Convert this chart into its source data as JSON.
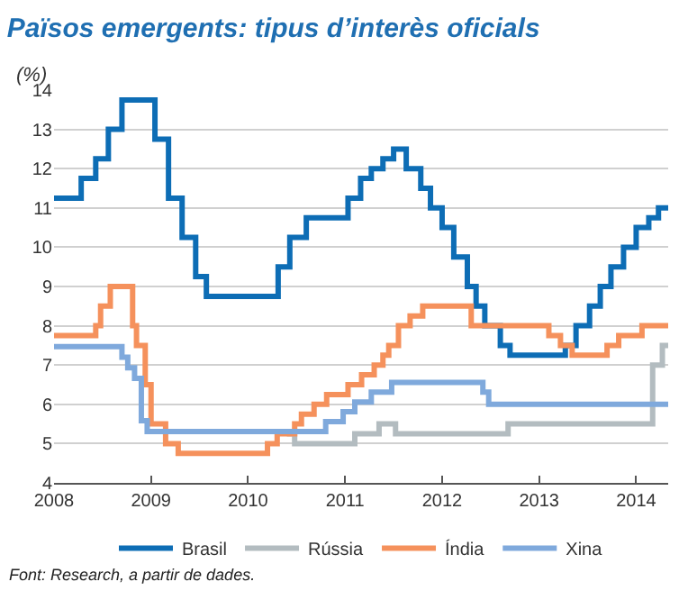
{
  "chart_data": {
    "type": "step",
    "title": "Països emergents: tipus d’interès oficials",
    "ylabel": "(%)",
    "xlim": [
      2008,
      2014.33
    ],
    "xticks": [
      2008,
      2009,
      2010,
      2011,
      2012,
      2013,
      2014
    ],
    "ylim": [
      4,
      14
    ],
    "yticks": [
      4,
      5,
      6,
      7,
      8,
      9,
      10,
      11,
      12,
      13,
      14
    ],
    "grid": "y",
    "legend": "bottom",
    "marker": "none",
    "line_style": "solid",
    "annotations": [
      "Font: Research, a partir de dades."
    ],
    "series": [
      {
        "name": "Brasil",
        "color": "#0d6db5",
        "x": [
          2008,
          2008.28,
          2008.43,
          2008.56,
          2008.7,
          2009.04,
          2009.18,
          2009.32,
          2009.46,
          2009.57,
          2010.31,
          2010.43,
          2010.6,
          2011.03,
          2011.16,
          2011.27,
          2011.39,
          2011.5,
          2011.63,
          2011.78,
          2011.88,
          2012.0,
          2012.12,
          2012.26,
          2012.35,
          2012.44,
          2012.6,
          2012.7,
          2013.27,
          2013.38,
          2013.52,
          2013.63,
          2013.74,
          2013.87,
          2014.0,
          2014.13,
          2014.23,
          2014.33
        ],
        "values": [
          11.25,
          11.75,
          12.25,
          13,
          13.75,
          12.75,
          11.25,
          10.25,
          9.25,
          8.75,
          9.5,
          10.25,
          10.75,
          11.25,
          11.75,
          12,
          12.25,
          12.5,
          12,
          11.5,
          11,
          10.5,
          9.75,
          9,
          8.5,
          8,
          7.5,
          7.25,
          7.5,
          8,
          8.5,
          9,
          9.5,
          10,
          10.5,
          10.75,
          11,
          11
        ]
      },
      {
        "name": "Rússia",
        "color": "#b3bcc0",
        "x": [
          2010.4,
          2010.48,
          2011.1,
          2011.35,
          2011.52,
          2012.68,
          2014.17,
          2014.27,
          2014.33
        ],
        "values": [
          5.25,
          5,
          5.25,
          5.5,
          5.25,
          5.5,
          7,
          7.5,
          7.5
        ]
      },
      {
        "name": "Índia",
        "color": "#f5915c",
        "x": [
          2008,
          2008.43,
          2008.48,
          2008.58,
          2008.81,
          2008.85,
          2008.94,
          2009.0,
          2009.15,
          2009.28,
          2010.2,
          2010.3,
          2010.48,
          2010.55,
          2010.68,
          2010.81,
          2011.03,
          2011.17,
          2011.3,
          2011.39,
          2011.45,
          2011.55,
          2011.67,
          2011.8,
          2012.3,
          2013.1,
          2013.22,
          2013.34,
          2013.7,
          2013.82,
          2014.06,
          2014.33
        ],
        "values": [
          7.75,
          8,
          8.5,
          9,
          8,
          7.5,
          6.5,
          5.5,
          5,
          4.75,
          5,
          5.25,
          5.5,
          5.75,
          6,
          6.25,
          6.5,
          6.75,
          7,
          7.25,
          7.5,
          8,
          8.25,
          8.5,
          8,
          7.75,
          7.5,
          7.25,
          7.5,
          7.75,
          8,
          8
        ]
      },
      {
        "name": "Xina",
        "color": "#7fa9dc",
        "x": [
          2008,
          2008.7,
          2008.76,
          2008.83,
          2008.9,
          2008.96,
          2010.8,
          2010.98,
          2011.1,
          2011.27,
          2011.48,
          2012.42,
          2012.48,
          2014.33
        ],
        "values": [
          7.47,
          7.2,
          6.93,
          6.66,
          5.58,
          5.31,
          5.56,
          5.81,
          6.06,
          6.31,
          6.56,
          6.31,
          6,
          6
        ]
      }
    ]
  }
}
